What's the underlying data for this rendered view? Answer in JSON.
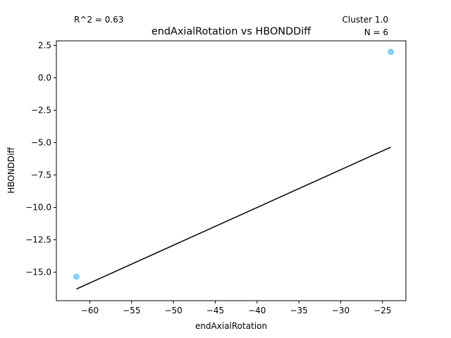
{
  "chart_data": {
    "type": "scatter",
    "title": "endAxialRotation vs HBONDDiff",
    "xlabel": "endAxialRotation",
    "ylabel": "HBONDDiff",
    "xlim": [
      -64.0,
      -22.2
    ],
    "ylim": [
      -17.2,
      2.85
    ],
    "xticks": [
      -60,
      -55,
      -50,
      -45,
      -40,
      -35,
      -30,
      -25
    ],
    "xtick_labels": [
      "−60",
      "−55",
      "−50",
      "−45",
      "−40",
      "−35",
      "−30",
      "−25"
    ],
    "yticks": [
      2.5,
      0.0,
      -2.5,
      -5.0,
      -7.5,
      -10.0,
      -12.5,
      -15.0
    ],
    "ytick_labels": [
      "2.5",
      "0.0",
      "−2.5",
      "−5.0",
      "−7.5",
      "−10.0",
      "−12.5",
      "−15.0"
    ],
    "grid": false,
    "points": [
      {
        "x": -61.6,
        "y": -15.35
      },
      {
        "x": -24.0,
        "y": 2.0
      }
    ],
    "point_color": "#87CEFA",
    "fit_line": {
      "x": [
        -61.6,
        -24.0
      ],
      "y": [
        -16.3,
        -5.35
      ],
      "color": "#000000"
    },
    "annotations": {
      "r2": "R^2 = 0.63",
      "cluster": "Cluster 1.0",
      "n": "N = 6"
    }
  }
}
